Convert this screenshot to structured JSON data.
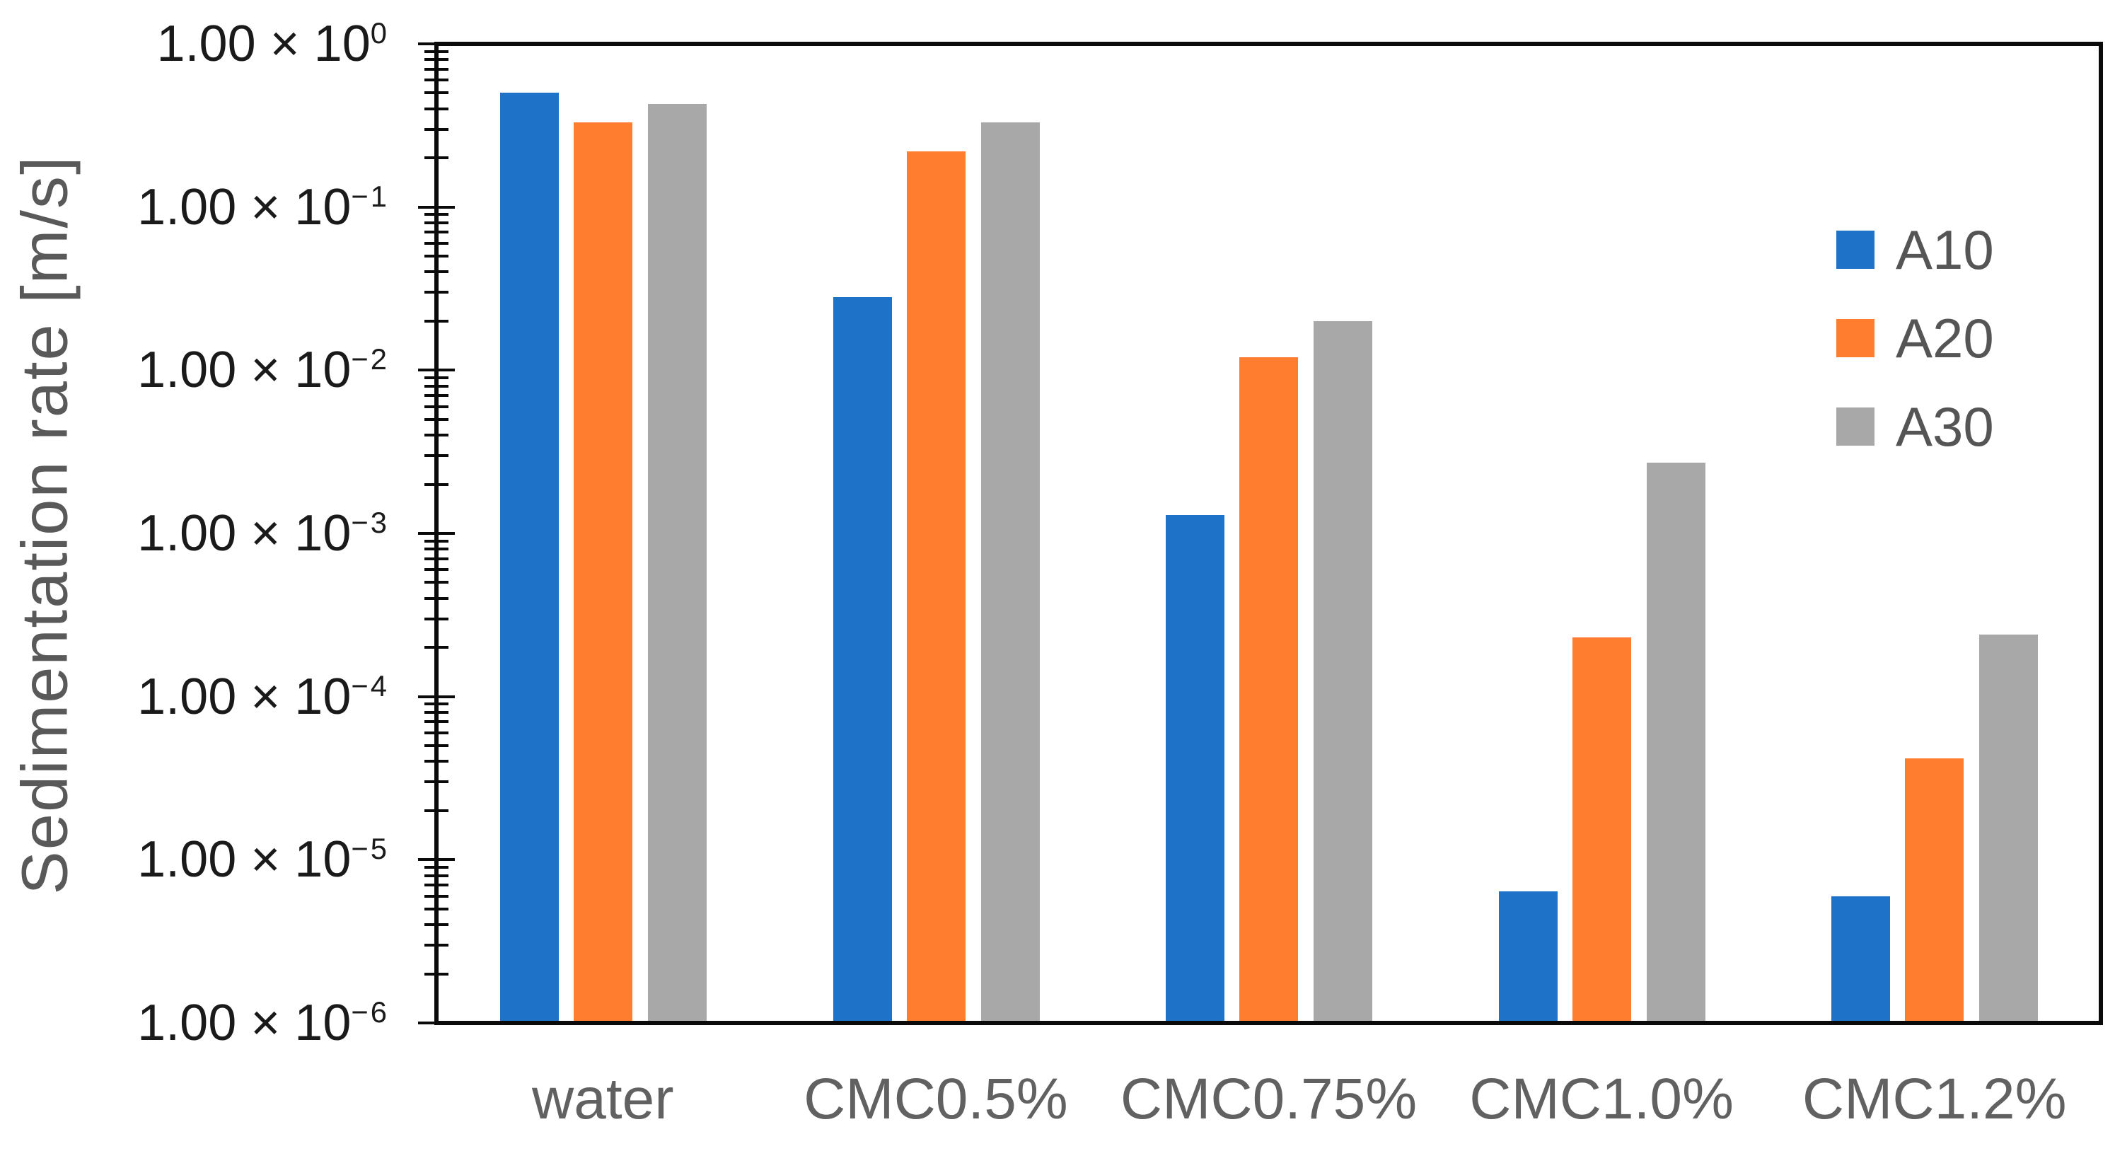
{
  "chart_data": {
    "type": "bar",
    "title": "",
    "xlabel": "",
    "ylabel": "Sedimentation rate [m/s]",
    "y_scale": "log",
    "ylim": [
      1e-06,
      1
    ],
    "ylim_exponents": [
      0,
      -6
    ],
    "grid": false,
    "legend_position": "right",
    "y_ticks": [
      {
        "mantissa": "1.00 × 10",
        "exponent": "0"
      },
      {
        "mantissa": "1.00 × 10",
        "exponent": "−1"
      },
      {
        "mantissa": "1.00 × 10",
        "exponent": "−2"
      },
      {
        "mantissa": "1.00 × 10",
        "exponent": "−3"
      },
      {
        "mantissa": "1.00 × 10",
        "exponent": "−4"
      },
      {
        "mantissa": "1.00 × 10",
        "exponent": "−5"
      },
      {
        "mantissa": "1.00 × 10",
        "exponent": "−6"
      }
    ],
    "categories": [
      "water",
      "CMC0.5%",
      "CMC0.75%",
      "CMC1.0%",
      "CMC1.2%"
    ],
    "series": [
      {
        "name": "A10",
        "color": "#1e73c8",
        "values": [
          0.5,
          0.028,
          0.0013,
          6.4e-06,
          6e-06
        ]
      },
      {
        "name": "A20",
        "color": "#ff7d2e",
        "values": [
          0.33,
          0.22,
          0.012,
          0.00023,
          4.2e-05
        ]
      },
      {
        "name": "A30",
        "color": "#a8a8a8",
        "values": [
          0.43,
          0.33,
          0.02,
          0.0027,
          0.00024
        ]
      }
    ]
  }
}
